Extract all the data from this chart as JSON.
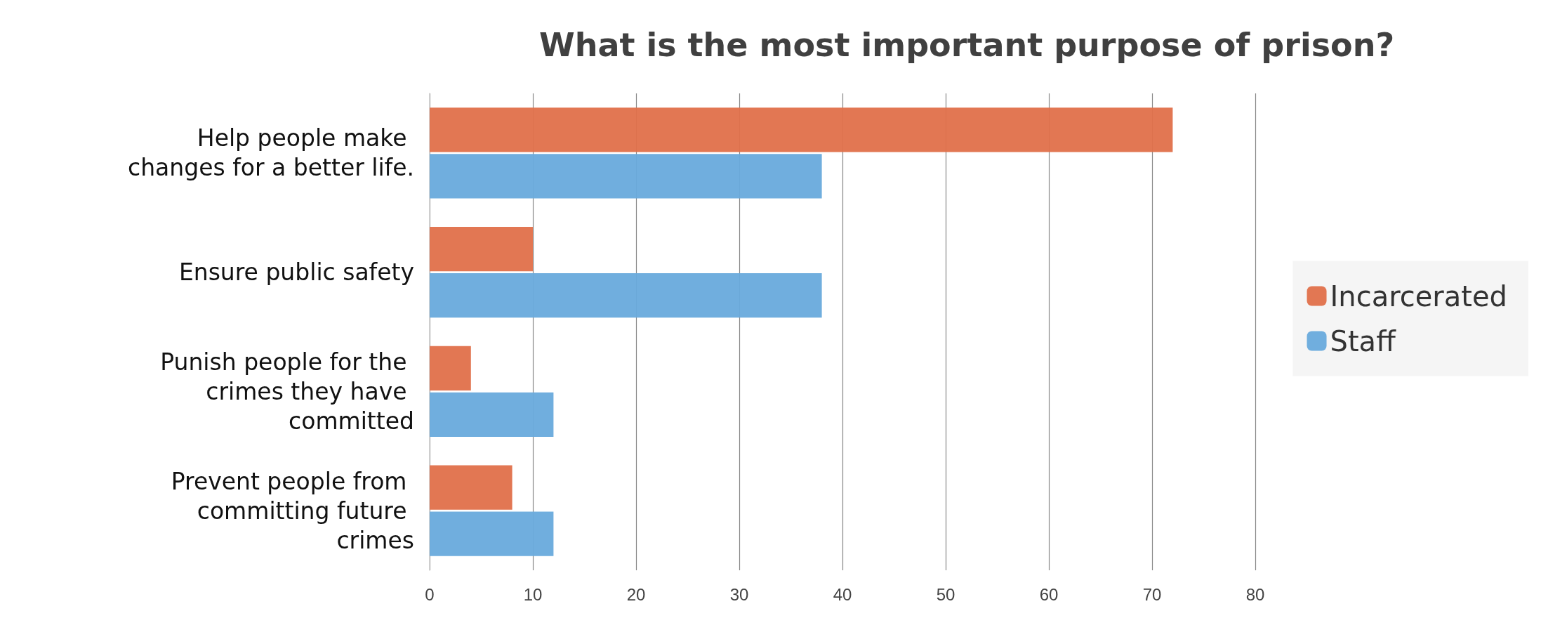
{
  "chart_data": {
    "type": "bar",
    "orientation": "horizontal",
    "title": "What is the most important purpose of prison?",
    "categories": [
      "Help people make changes for a better life.",
      "Ensure public safety",
      "Punish people for the crimes they have committed",
      "Prevent people from committing future crimes"
    ],
    "series": [
      {
        "name": "Incarcerated",
        "color": "#e0704a",
        "values": [
          72,
          10,
          4,
          8
        ]
      },
      {
        "name": "Staff",
        "color": "#68aadc",
        "values": [
          38,
          38,
          12,
          12
        ]
      }
    ],
    "xlim": [
      0,
      80
    ],
    "xticks": [
      0,
      10,
      20,
      30,
      40,
      50,
      60,
      70,
      80
    ],
    "grid": "x",
    "legend": "right"
  }
}
